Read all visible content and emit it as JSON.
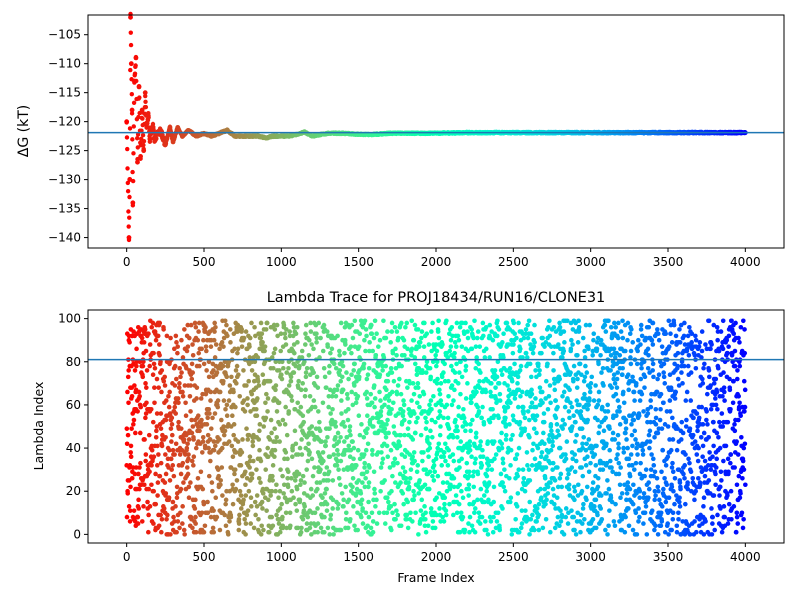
{
  "chart_data": [
    {
      "type": "scatter",
      "title": "",
      "xlabel": "",
      "ylabel": "ΔG (kT)",
      "xlim": [
        -250,
        4250
      ],
      "ylim": [
        -141.8,
        -101.6
      ],
      "xticks": [
        0,
        500,
        1000,
        1500,
        2000,
        2500,
        3000,
        3500,
        4000
      ],
      "yticks": [
        -105,
        -110,
        -115,
        -120,
        -125,
        -130,
        -135,
        -140
      ],
      "reference_line": -121.9,
      "reference_color": "#1f77b4",
      "colormap": "rainbow (red at early frames to violet at late frames)",
      "series": [
        {
          "x": [
            0,
            15,
            20,
            25,
            30,
            35,
            40,
            50,
            60,
            70,
            80,
            90,
            100,
            110,
            120,
            130,
            140,
            150,
            160,
            170,
            180,
            200,
            220,
            250,
            280,
            300,
            330,
            360,
            400,
            450,
            500,
            550,
            600,
            650,
            700,
            750,
            800,
            850,
            900,
            950,
            1000,
            1050,
            1100,
            1150,
            1200,
            1300,
            1400,
            1500,
            1600,
            1700,
            1800,
            1900,
            2000,
            2200,
            2400,
            2600,
            2800,
            3000,
            3200,
            3400,
            3600,
            3800,
            4000
          ],
          "y": [
            -120,
            -140,
            -130,
            -102,
            -110,
            -118,
            -134,
            -113,
            -109,
            -127,
            -114,
            -126,
            -118,
            -125,
            -115,
            -121,
            -119,
            -123,
            -122,
            -121,
            -123,
            -122,
            -121.5,
            -124,
            -121,
            -123.5,
            -121,
            -122.5,
            -121.5,
            -122.5,
            -122,
            -122.5,
            -122,
            -121.5,
            -122.5,
            -122.5,
            -122.5,
            -122.5,
            -122.8,
            -122.5,
            -122.5,
            -122.5,
            -122.2,
            -121.8,
            -122.5,
            -122,
            -122,
            -122.2,
            -122.2,
            -122,
            -122,
            -122,
            -122,
            -121.9,
            -121.9,
            -121.9,
            -121.9,
            -121.9,
            -121.9,
            -121.9,
            -121.9,
            -121.9,
            -121.9
          ]
        }
      ]
    },
    {
      "type": "scatter",
      "title": "Lambda Trace for PROJ18434/RUN16/CLONE31",
      "xlabel": "Frame Index",
      "ylabel": "Lambda Index",
      "xlim": [
        -250,
        4250
      ],
      "ylim": [
        -4,
        104
      ],
      "xticks": [
        0,
        500,
        1000,
        1500,
        2000,
        2500,
        3000,
        3500,
        4000
      ],
      "yticks": [
        0,
        20,
        40,
        60,
        80,
        100
      ],
      "reference_line": 81,
      "reference_color": "#1f77b4",
      "colormap": "rainbow (red at early frames to violet at late frames)",
      "series": [
        {
          "points": "about 4000 frames, one lambda index (0–99) per frame, uniformly spread across the full 0–99 range"
        }
      ]
    }
  ]
}
